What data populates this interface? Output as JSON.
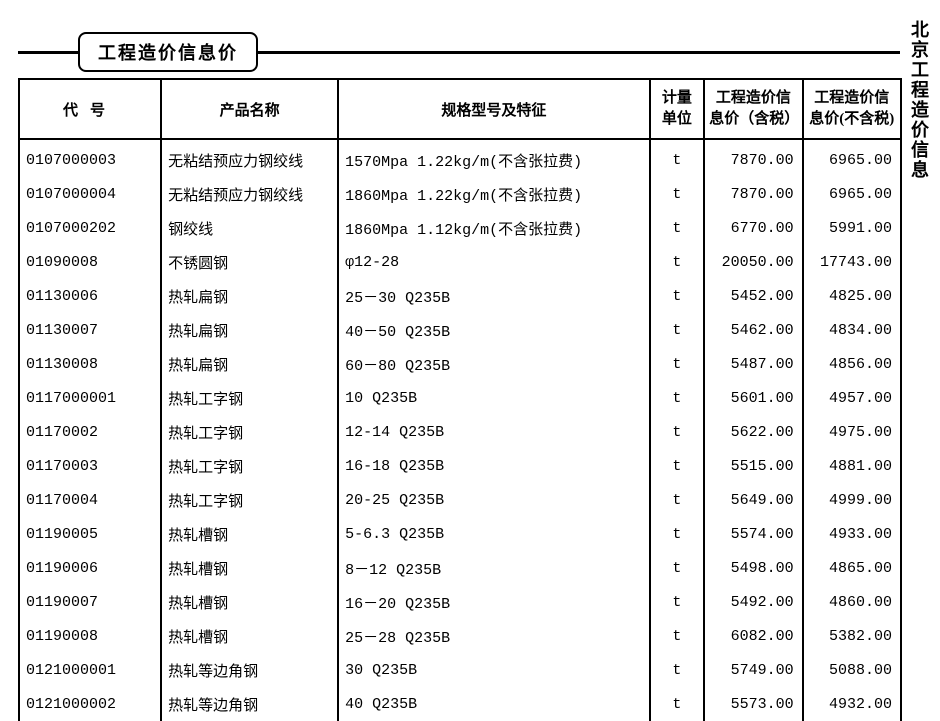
{
  "title": "工程造价信息价",
  "sideText": "北京工程造价信息",
  "columns": {
    "code": "代号",
    "name": "产品名称",
    "spec": "规格型号及特征",
    "unit": "计量单位",
    "price1": "工程造价信息价（含税）",
    "price2": "工程造价信息价(不含税)"
  },
  "rows": [
    {
      "code": "0107000003",
      "name": "无粘结预应力钢绞线",
      "spec": "1570Mpa  1.22kg/m(不含张拉费)",
      "unit": "t",
      "p1": "7870.00",
      "p2": "6965.00"
    },
    {
      "code": "0107000004",
      "name": "无粘结预应力钢绞线",
      "spec": "1860Mpa  1.22kg/m(不含张拉费)",
      "unit": "t",
      "p1": "7870.00",
      "p2": "6965.00"
    },
    {
      "code": "0107000202",
      "name": "钢绞线",
      "spec": "1860Mpa  1.12kg/m(不含张拉费)",
      "unit": "t",
      "p1": "6770.00",
      "p2": "5991.00"
    },
    {
      "code": "01090008",
      "name": "不锈圆钢",
      "spec": "φ12-28",
      "unit": "t",
      "p1": "20050.00",
      "p2": "17743.00"
    },
    {
      "code": "01130006",
      "name": "热轧扁钢",
      "spec": "25－30  Q235B",
      "unit": "t",
      "p1": "5452.00",
      "p2": "4825.00"
    },
    {
      "code": "01130007",
      "name": "热轧扁钢",
      "spec": "40－50  Q235B",
      "unit": "t",
      "p1": "5462.00",
      "p2": "4834.00"
    },
    {
      "code": "01130008",
      "name": "热轧扁钢",
      "spec": "60－80  Q235B",
      "unit": "t",
      "p1": "5487.00",
      "p2": "4856.00"
    },
    {
      "code": "0117000001",
      "name": "热轧工字钢",
      "spec": "10   Q235B",
      "unit": "t",
      "p1": "5601.00",
      "p2": "4957.00"
    },
    {
      "code": "01170002",
      "name": "热轧工字钢",
      "spec": "12-14  Q235B",
      "unit": "t",
      "p1": "5622.00",
      "p2": "4975.00"
    },
    {
      "code": "01170003",
      "name": "热轧工字钢",
      "spec": "16-18  Q235B",
      "unit": "t",
      "p1": "5515.00",
      "p2": "4881.00"
    },
    {
      "code": "01170004",
      "name": "热轧工字钢",
      "spec": "20-25  Q235B",
      "unit": "t",
      "p1": "5649.00",
      "p2": "4999.00"
    },
    {
      "code": "01190005",
      "name": "热轧槽钢",
      "spec": "5-6.3  Q235B",
      "unit": "t",
      "p1": "5574.00",
      "p2": "4933.00"
    },
    {
      "code": "01190006",
      "name": "热轧槽钢",
      "spec": "8－12  Q235B",
      "unit": "t",
      "p1": "5498.00",
      "p2": "4865.00"
    },
    {
      "code": "01190007",
      "name": "热轧槽钢",
      "spec": "16－20  Q235B",
      "unit": "t",
      "p1": "5492.00",
      "p2": "4860.00"
    },
    {
      "code": "01190008",
      "name": "热轧槽钢",
      "spec": "25－28  Q235B",
      "unit": "t",
      "p1": "6082.00",
      "p2": "5382.00"
    },
    {
      "code": "0121000001",
      "name": "热轧等边角钢",
      "spec": "30   Q235B",
      "unit": "t",
      "p1": "5749.00",
      "p2": "5088.00"
    },
    {
      "code": "0121000002",
      "name": "热轧等边角钢",
      "spec": "40   Q235B",
      "unit": "t",
      "p1": "5573.00",
      "p2": "4932.00"
    }
  ],
  "style": {
    "borderColor": "#000000",
    "background": "#ffffff",
    "fontMain": "SimSun",
    "fontMono": "Courier New",
    "fontSize": 15,
    "headerFontSize": 15,
    "titleFontSize": 18
  }
}
